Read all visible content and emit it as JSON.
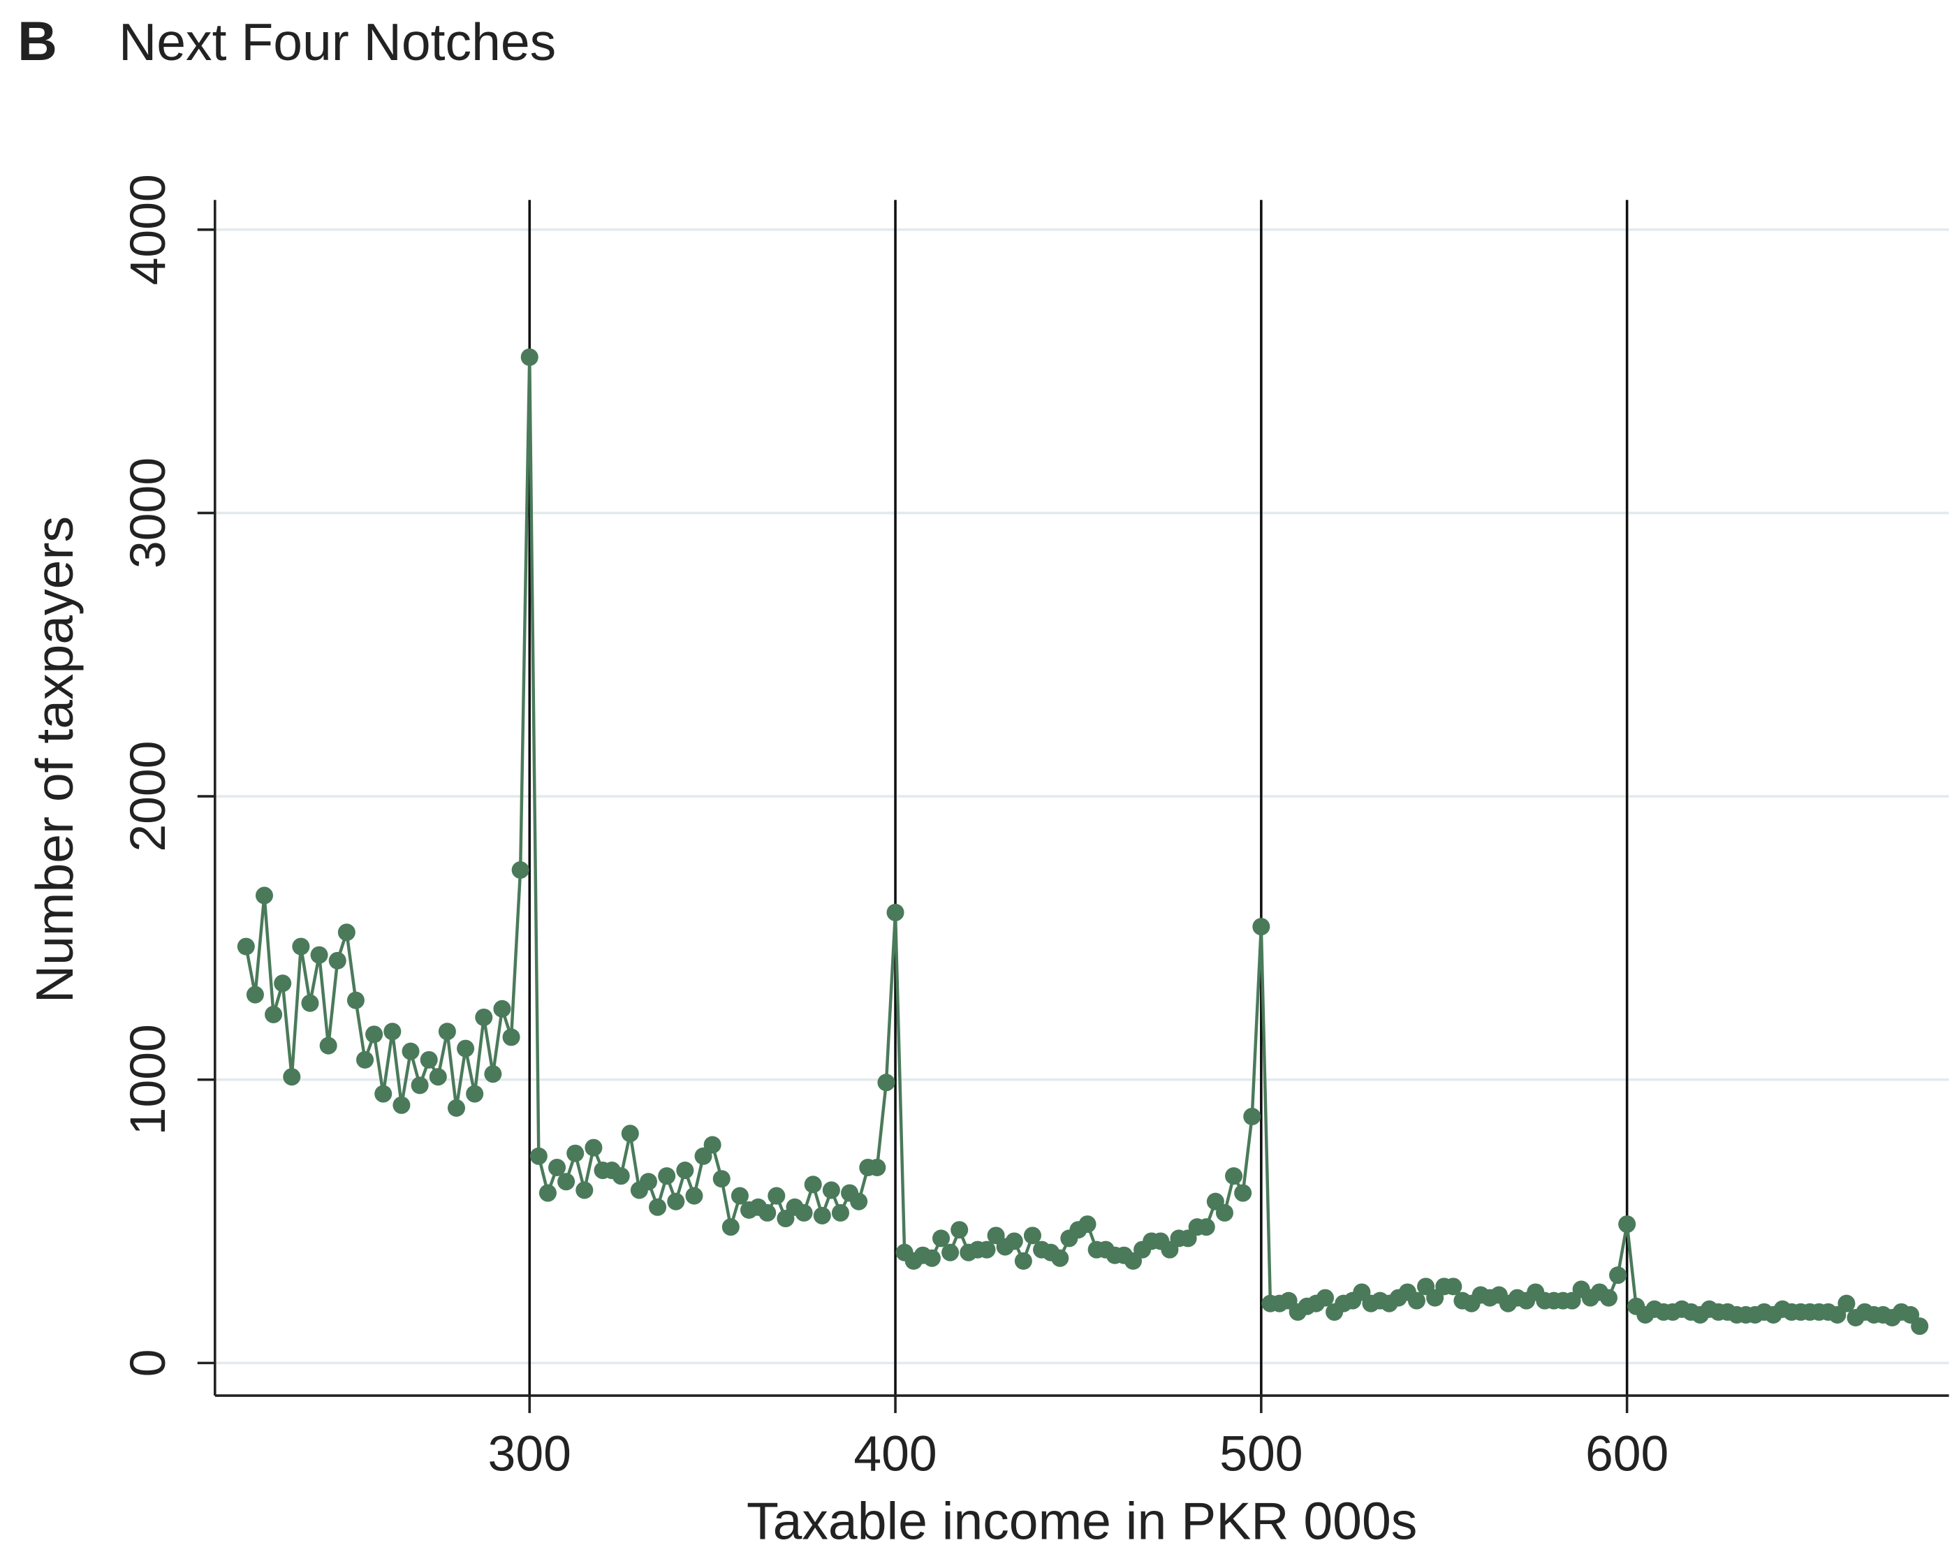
{
  "chart_data": {
    "type": "line",
    "panel_label": "B",
    "title": "Next Four Notches",
    "x_label": "Taxable income in PKR 000s",
    "y_label": "Number of taxpayers",
    "xlim": [
      214,
      688
    ],
    "ylim": [
      -115,
      4105
    ],
    "xticks": [
      300,
      400,
      500,
      600
    ],
    "yticks": [
      0,
      1000,
      2000,
      3000,
      4000
    ],
    "grid": true,
    "vlines": [
      300,
      400,
      500,
      600
    ],
    "x": [
      222.5,
      225,
      227.5,
      230,
      232.5,
      235,
      237.5,
      240,
      242.5,
      245,
      247.5,
      250,
      252.5,
      255,
      257.5,
      260,
      262.5,
      265,
      267.5,
      270,
      272.5,
      275,
      277.5,
      280,
      282.5,
      285,
      287.5,
      290,
      292.5,
      295,
      297.5,
      300,
      302.5,
      305,
      307.5,
      310,
      312.5,
      315,
      317.5,
      320,
      322.5,
      325,
      327.5,
      330,
      332.5,
      335,
      337.5,
      340,
      342.5,
      345,
      347.5,
      350,
      352.5,
      355,
      357.5,
      360,
      362.5,
      365,
      367.5,
      370,
      372.5,
      375,
      377.5,
      380,
      382.5,
      385,
      387.5,
      390,
      392.5,
      395,
      397.5,
      400,
      402.5,
      405,
      407.5,
      410,
      412.5,
      415,
      417.5,
      420,
      422.5,
      425,
      427.5,
      430,
      432.5,
      435,
      437.5,
      440,
      442.5,
      445,
      447.5,
      450,
      452.5,
      455,
      457.5,
      460,
      462.5,
      465,
      467.5,
      470,
      472.5,
      475,
      477.5,
      480,
      482.5,
      485,
      487.5,
      490,
      492.5,
      495,
      497.5,
      500,
      502.5,
      505,
      507.5,
      510,
      512.5,
      515,
      517.5,
      520,
      522.5,
      525,
      527.5,
      530,
      532.5,
      535,
      537.5,
      540,
      542.5,
      545,
      547.5,
      550,
      552.5,
      555,
      557.5,
      560,
      562.5,
      565,
      567.5,
      570,
      572.5,
      575,
      577.5,
      580,
      582.5,
      585,
      587.5,
      590,
      592.5,
      595,
      597.5,
      600,
      602.5,
      605,
      607.5,
      610,
      612.5,
      615,
      617.5,
      620,
      622.5,
      625,
      627.5,
      630,
      632.5,
      635,
      637.5,
      640,
      642.5,
      645,
      647.5,
      650,
      652.5,
      655,
      657.5,
      660,
      662.5,
      665,
      667.5,
      670,
      672.5,
      675,
      677.5,
      680
    ],
    "series": [
      {
        "color": "#4a7a5a",
        "values": [
          1470,
          1300,
          1650,
          1230,
          1340,
          1010,
          1470,
          1270,
          1440,
          1120,
          1420,
          1520,
          1280,
          1070,
          1160,
          950,
          1170,
          910,
          1100,
          980,
          1070,
          1010,
          1170,
          900,
          1110,
          950,
          1220,
          1020,
          1250,
          1150,
          1740,
          3550,
          730,
          600,
          690,
          640,
          740,
          610,
          760,
          680,
          680,
          660,
          810,
          610,
          640,
          550,
          660,
          570,
          680,
          590,
          730,
          770,
          650,
          480,
          590,
          540,
          550,
          530,
          590,
          510,
          550,
          530,
          630,
          520,
          610,
          530,
          600,
          570,
          690,
          690,
          990,
          1590,
          390,
          360,
          380,
          370,
          440,
          390,
          470,
          390,
          400,
          400,
          450,
          410,
          430,
          360,
          450,
          400,
          390,
          370,
          440,
          470,
          490,
          400,
          400,
          380,
          380,
          360,
          400,
          430,
          430,
          400,
          440,
          440,
          480,
          480,
          570,
          530,
          660,
          600,
          870,
          1540,
          210,
          210,
          220,
          180,
          200,
          210,
          230,
          180,
          210,
          220,
          250,
          210,
          220,
          210,
          230,
          250,
          220,
          270,
          230,
          270,
          270,
          220,
          210,
          240,
          230,
          240,
          210,
          230,
          220,
          250,
          220,
          220,
          220,
          220,
          260,
          230,
          250,
          230,
          310,
          490,
          200,
          170,
          190,
          180,
          180,
          190,
          180,
          170,
          190,
          180,
          180,
          170,
          170,
          170,
          180,
          170,
          190,
          180,
          180,
          180,
          180,
          180,
          170,
          210,
          160,
          180,
          170,
          170,
          160,
          180,
          170,
          130
        ]
      }
    ]
  }
}
